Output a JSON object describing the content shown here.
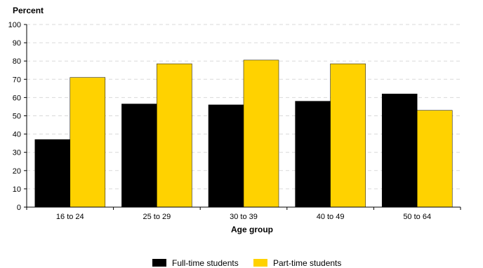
{
  "chart_data": {
    "type": "bar",
    "title": "",
    "ylabel": "Percent",
    "xlabel": "Age group",
    "categories": [
      "16 to 24",
      "25 to 29",
      "30 to 39",
      "40 to 49",
      "50 to 64"
    ],
    "series": [
      {
        "name": "Full-time students",
        "color": "#000000",
        "values": [
          37,
          56.5,
          56,
          58,
          62
        ]
      },
      {
        "name": "Part-time students",
        "color": "#FFD200",
        "values": [
          71,
          78.5,
          80.5,
          78.5,
          53
        ]
      }
    ],
    "ylim": [
      0,
      100
    ],
    "yticks": [
      0,
      10,
      20,
      30,
      40,
      50,
      60,
      70,
      80,
      90,
      100
    ],
    "grid": true,
    "legend_position": "bottom"
  }
}
